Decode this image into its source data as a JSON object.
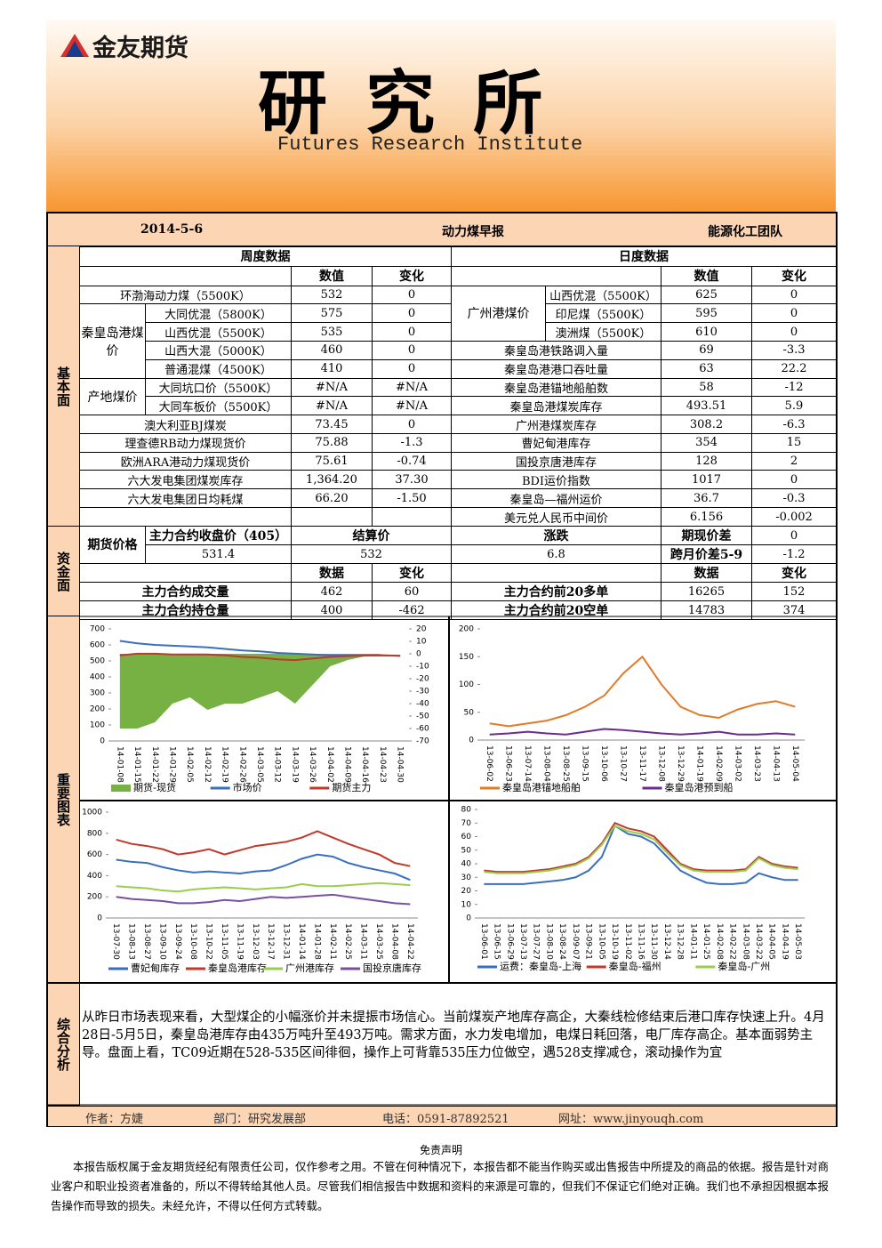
{
  "header": {
    "logo": "金友期货",
    "title": "研 究 所",
    "subtitle": "Futures Research Institute"
  },
  "info": {
    "date": "2014-5-6",
    "report": "动力煤早报",
    "team": "能源化工团队"
  },
  "sections": {
    "basic": "基本面",
    "funds": "资金面",
    "charts": "重要图表",
    "analysis": "综合分析"
  },
  "weekly": {
    "title": "周度数据",
    "columns": [
      "数值",
      "变化"
    ],
    "items": [
      {
        "label": "环渤海动力煤（5500K）",
        "value": "532",
        "change": "0"
      },
      {
        "group": "秦皇岛港煤价",
        "rows": [
          {
            "label": "大同优混（5800K）",
            "value": "575",
            "change": "0"
          },
          {
            "label": "山西优混（5500K）",
            "value": "535",
            "change": "0"
          },
          {
            "label": "山西大混（5000K）",
            "value": "460",
            "change": "0"
          },
          {
            "label": "普通混煤（4500K）",
            "value": "410",
            "change": "0"
          }
        ]
      },
      {
        "group": "产地煤价",
        "rows": [
          {
            "label": "大同坑口价（5500K）",
            "value": "#N/A",
            "change": "#N/A"
          },
          {
            "label": "大同车板价（5500K）",
            "value": "#N/A",
            "change": "#N/A"
          }
        ]
      },
      {
        "label": "澳大利亚BJ煤炭",
        "value": "73.45",
        "change": "0"
      },
      {
        "label": "理查德RB动力煤现货价",
        "value": "75.88",
        "change": "-1.3"
      },
      {
        "label": "欧洲ARA港动力煤现货价",
        "value": "75.61",
        "change": "-0.74"
      },
      {
        "label": "六大发电集团煤炭库存",
        "value": "1,364.20",
        "change": "37.30"
      },
      {
        "label": "六大发电集团日均耗煤",
        "value": "66.20",
        "change": "-1.50"
      }
    ]
  },
  "daily": {
    "title": "日度数据",
    "columns": [
      "数值",
      "变化"
    ],
    "items": [
      {
        "group": "广州港煤价",
        "rows": [
          {
            "label": "山西优混（5500K）",
            "value": "625",
            "change": "0"
          },
          {
            "label": "印尼煤（5500K）",
            "value": "595",
            "change": "0"
          },
          {
            "label": "澳洲煤（5500K）",
            "value": "610",
            "change": "0"
          }
        ]
      },
      {
        "label": "秦皇岛港铁路调入量",
        "value": "69",
        "change": "-3.3"
      },
      {
        "label": "秦皇岛港港口吞吐量",
        "value": "63",
        "change": "22.2"
      },
      {
        "label": "秦皇岛港锚地船舶数",
        "value": "58",
        "change": "-12"
      },
      {
        "label": "秦皇岛港煤炭库存",
        "value": "493.51",
        "change": "5.9"
      },
      {
        "label": "广州港煤炭库存",
        "value": "308.2",
        "change": "-6.3"
      },
      {
        "label": "曹妃甸港库存",
        "value": "354",
        "change": "15"
      },
      {
        "label": "国投京唐港库存",
        "value": "128",
        "change": "2"
      },
      {
        "label": "BDI运价指数",
        "value": "1017",
        "change": "0"
      },
      {
        "label": "秦皇岛—福州运价",
        "value": "36.7",
        "change": "-0.3"
      },
      {
        "label": "美元兑人民币中间价",
        "value": "6.156",
        "change": "-0.002"
      }
    ]
  },
  "funds": {
    "price_label": "期货价格",
    "headers": [
      "主力合约收盘价（405）",
      "结算价",
      "涨跌"
    ],
    "values": [
      "531.4",
      "532",
      "6.8"
    ],
    "spreads": [
      {
        "label": "期现价差",
        "value": "0"
      },
      {
        "label": "跨月价差5-9",
        "value": "-1.2"
      }
    ],
    "columns": [
      "数据",
      "变化"
    ],
    "left": [
      {
        "label": "主力合约成交量",
        "value": "462",
        "change": "60"
      },
      {
        "label": "主力合约持仓量",
        "value": "400",
        "change": "-462"
      }
    ],
    "right": [
      {
        "label": "主力合约前20多单",
        "value": "16265",
        "change": "152"
      },
      {
        "label": "主力合约前20空单",
        "value": "14783",
        "change": "374"
      }
    ]
  },
  "chart_data": [
    {
      "type": "line",
      "ylim": [
        0,
        700
      ],
      "yticks": [
        0,
        100,
        200,
        300,
        400,
        500,
        600,
        700
      ],
      "y2lim": [
        -70,
        20
      ],
      "y2ticks": [
        -70,
        -60,
        -50,
        -40,
        -30,
        -20,
        -10,
        0,
        10,
        20
      ],
      "categories": [
        "14-01-08",
        "14-01-15",
        "14-01-22",
        "14-01-29",
        "14-02-05",
        "14-02-12",
        "14-02-19",
        "14-02-26",
        "14-03-05",
        "14-03-12",
        "14-03-19",
        "14-03-26",
        "14-04-02",
        "14-04-09",
        "14-04-16",
        "14-04-23",
        "14-04-30"
      ],
      "series": [
        {
          "name": "期货-现货",
          "color": "#77b144",
          "type": "area",
          "axis": "y2",
          "values": [
            -60,
            -60,
            -55,
            -40,
            -35,
            -45,
            -40,
            -40,
            -35,
            -30,
            -40,
            -25,
            -10,
            -5,
            -2,
            0,
            0
          ]
        },
        {
          "name": "市场价",
          "color": "#3a6fc0",
          "values": [
            625,
            610,
            600,
            595,
            590,
            585,
            575,
            565,
            560,
            550,
            545,
            540,
            535,
            535,
            535,
            535,
            532
          ]
        },
        {
          "name": "期货主力",
          "color": "#c0392b",
          "values": [
            535,
            545,
            545,
            540,
            540,
            540,
            535,
            525,
            520,
            510,
            505,
            515,
            525,
            530,
            533,
            535,
            532
          ]
        }
      ]
    },
    {
      "type": "line",
      "ylim": [
        0,
        200
      ],
      "yticks": [
        0,
        50,
        100,
        150,
        200
      ],
      "categories": [
        "13-06-02",
        "13-06-23",
        "13-07-14",
        "13-08-04",
        "13-08-25",
        "13-09-15",
        "13-10-06",
        "13-10-27",
        "13-11-17",
        "13-12-08",
        "13-12-29",
        "14-01-19",
        "14-02-09",
        "14-03-02",
        "14-03-23",
        "14-04-13",
        "14-05-04"
      ],
      "series": [
        {
          "name": "秦皇岛港锚地船舶",
          "color": "#e07b2a",
          "values": [
            30,
            25,
            30,
            35,
            45,
            60,
            80,
            120,
            150,
            100,
            60,
            45,
            40,
            55,
            65,
            70,
            60
          ]
        },
        {
          "name": "秦皇岛港预到船",
          "color": "#6a2c91",
          "values": [
            10,
            12,
            15,
            12,
            10,
            15,
            20,
            18,
            15,
            12,
            10,
            12,
            15,
            10,
            10,
            12,
            10
          ]
        }
      ]
    },
    {
      "type": "line",
      "ylim": [
        0,
        1000
      ],
      "yticks": [
        0,
        200,
        400,
        600,
        800,
        1000
      ],
      "categories": [
        "13-07-30",
        "13-08-13",
        "13-08-27",
        "13-09-10",
        "13-09-24",
        "13-10-08",
        "13-10-22",
        "13-11-05",
        "13-11-19",
        "13-12-03",
        "13-12-17",
        "13-12-31",
        "14-01-14",
        "14-01-28",
        "14-02-11",
        "14-02-25",
        "14-03-11",
        "14-03-25",
        "14-04-08",
        "14-04-22"
      ],
      "series": [
        {
          "name": "曹妃甸库存",
          "color": "#3a6fc0",
          "values": [
            550,
            530,
            520,
            480,
            450,
            430,
            440,
            430,
            420,
            440,
            450,
            500,
            560,
            600,
            580,
            520,
            480,
            450,
            420,
            360
          ]
        },
        {
          "name": "秦皇岛港库存",
          "color": "#c0392b",
          "values": [
            740,
            700,
            680,
            650,
            600,
            620,
            650,
            600,
            640,
            680,
            700,
            720,
            760,
            820,
            760,
            700,
            650,
            600,
            520,
            490
          ]
        },
        {
          "name": "广州港库存",
          "color": "#9acd4c",
          "values": [
            300,
            290,
            280,
            260,
            250,
            270,
            280,
            290,
            280,
            270,
            280,
            290,
            320,
            300,
            300,
            310,
            320,
            330,
            320,
            310
          ]
        },
        {
          "name": "国投京唐库存",
          "color": "#7a4fa0",
          "values": [
            200,
            180,
            170,
            160,
            140,
            140,
            150,
            170,
            160,
            180,
            200,
            190,
            200,
            210,
            220,
            200,
            180,
            160,
            140,
            130
          ]
        }
      ]
    },
    {
      "type": "line",
      "ylim": [
        0,
        80
      ],
      "yticks": [
        0,
        10,
        20,
        30,
        40,
        50,
        60,
        70,
        80
      ],
      "categories": [
        "13-06-01",
        "13-06-15",
        "13-06-29",
        "13-07-13",
        "13-07-27",
        "13-08-10",
        "13-08-24",
        "13-09-07",
        "13-09-21",
        "13-10-05",
        "13-10-19",
        "13-11-02",
        "13-11-16",
        "13-11-30",
        "13-12-14",
        "13-12-28",
        "14-01-11",
        "14-01-25",
        "14-02-08",
        "14-02-22",
        "14-03-08",
        "14-03-22",
        "14-04-05",
        "14-04-19",
        "14-05-03"
      ],
      "series": [
        {
          "name": "运费：秦皇岛-上海",
          "color": "#3a6fc0",
          "values": [
            25,
            25,
            25,
            25,
            26,
            27,
            28,
            30,
            35,
            45,
            68,
            62,
            60,
            55,
            45,
            35,
            30,
            26,
            25,
            25,
            26,
            33,
            30,
            28,
            28
          ]
        },
        {
          "name": "秦皇岛-福州",
          "color": "#c0392b",
          "values": [
            35,
            34,
            34,
            34,
            35,
            36,
            38,
            40,
            45,
            55,
            70,
            66,
            64,
            60,
            50,
            40,
            36,
            35,
            35,
            35,
            36,
            45,
            40,
            38,
            37
          ]
        },
        {
          "name": "秦皇岛-广州",
          "color": "#9acd4c",
          "values": [
            34,
            33,
            33,
            33,
            34,
            35,
            37,
            39,
            44,
            54,
            68,
            64,
            62,
            58,
            48,
            39,
            35,
            34,
            34,
            34,
            35,
            44,
            39,
            37,
            36
          ]
        }
      ]
    }
  ],
  "analysis": "从昨日市场表现来看，大型煤企的小幅涨价并未提振市场信心。当前煤炭产地库存高企，大秦线检修结束后港口库存快速上升。4月28日-5月5日，秦皇岛港库存由435万吨升至493万吨。需求方面，水力发电增加，电煤日耗回落，电厂库存高企。基本面弱势主导。盘面上看，TC09近期在528-535区间徘徊，操作上可背靠535压力位做空，遇528支撑减仓，滚动操作为宜",
  "footer": {
    "author": "作者：方婕",
    "dept": "部门：研究发展部",
    "phone": "电话：0591-87892521",
    "site": "网址：www.jinyouqh.com"
  },
  "disclaimer": {
    "title": "免责声明",
    "text": "本报告版权属于金友期货经纪有限责任公司，仅作参考之用。不管在何种情况下，本报告都不能当作购买或出售报告中所提及的商品的依据。报告是针对商业客户和职业投资者准备的，所以不得转给其他人员。尽管我们相信报告中数据和资料的来源是可靠的，但我们不保证它们绝对正确。我们也不承担因根据本报告操作而导致的损失。未经允许，不得以任何方式转载。"
  }
}
